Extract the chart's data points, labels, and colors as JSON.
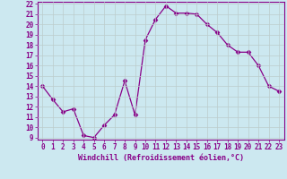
{
  "x": [
    0,
    1,
    2,
    3,
    4,
    5,
    6,
    7,
    8,
    9,
    10,
    11,
    12,
    13,
    14,
    15,
    16,
    17,
    18,
    19,
    20,
    21,
    22,
    23
  ],
  "y": [
    14.0,
    12.7,
    11.5,
    11.8,
    9.2,
    9.0,
    10.2,
    11.2,
    14.5,
    11.2,
    18.5,
    20.5,
    21.8,
    21.1,
    21.1,
    21.0,
    20.0,
    19.2,
    18.0,
    17.3,
    17.3,
    16.0,
    14.0,
    13.5
  ],
  "line_color": "#880088",
  "marker": "D",
  "marker_size": 2.5,
  "bg_color": "#cce8f0",
  "grid_color": "#bbcccc",
  "xlabel": "Windchill (Refroidissement éolien,°C)",
  "xlabel_color": "#880088",
  "tick_color": "#880088",
  "spine_color": "#880088",
  "ylim": [
    8.8,
    22.2
  ],
  "xlim": [
    -0.5,
    23.5
  ],
  "yticks": [
    9,
    10,
    11,
    12,
    13,
    14,
    15,
    16,
    17,
    18,
    19,
    20,
    21,
    22
  ],
  "xticks": [
    0,
    1,
    2,
    3,
    4,
    5,
    6,
    7,
    8,
    9,
    10,
    11,
    12,
    13,
    14,
    15,
    16,
    17,
    18,
    19,
    20,
    21,
    22,
    23
  ],
  "tick_fontsize": 5.5,
  "xlabel_fontsize": 6.0
}
